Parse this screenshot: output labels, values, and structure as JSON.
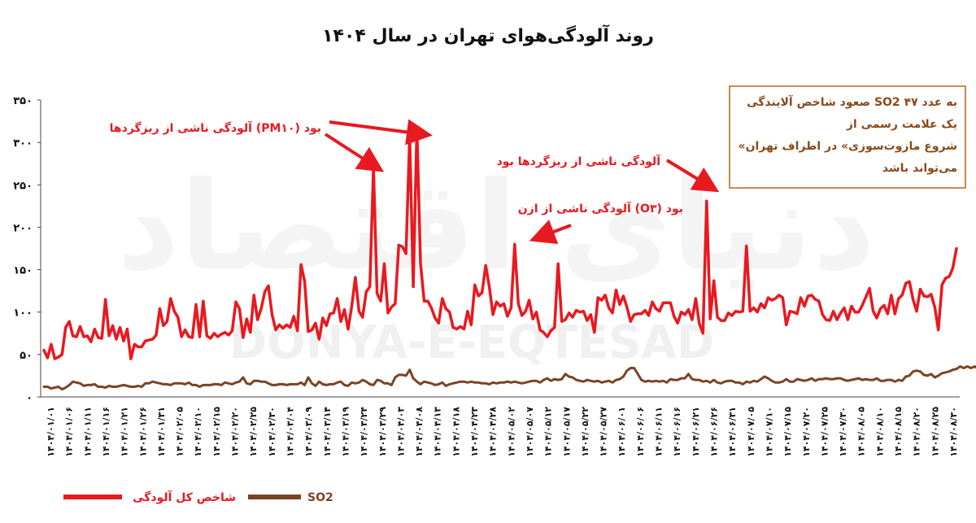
{
  "watermark": {
    "arabic": "دنیای اقتصاد",
    "latin": "DONYA-E-EQTESAD"
  },
  "colors": {
    "pollution_index": "#e8191f",
    "so2": "#7a4424",
    "note_border": "#b5651d",
    "note_text": "#8a4a1a",
    "annotation": "#e8191f"
  },
  "note": {
    "lines": [
      "صعود شاخص آلایندگی SO2 به عدد ۴۷",
      "یک علامت رسمی از",
      "«شروع مازوت‌سوزی» در اطراف تهران",
      "می‌تواند باشد"
    ]
  },
  "annotations": [
    {
      "text": "آلودگی ناشی از ریزگردها (PM۱۰) بود"
    },
    {
      "text": "آلودگی ناشی از ریزگردها بود"
    },
    {
      "text": "آلودگی ناشی از ازن (O۳) بود"
    }
  ],
  "chart_data": {
    "type": "line",
    "title": "روند آلودگی‌هوای تهران در سال ۱۴۰۴",
    "ylim": [
      0,
      350
    ],
    "yticks": [
      0,
      50,
      100,
      150,
      200,
      250,
      300,
      350
    ],
    "ytick_labels": [
      "۰",
      "۵۰",
      "۱۰۰",
      "۱۵۰",
      "۲۰۰",
      "۲۵۰",
      "۳۰۰",
      "۳۵۰"
    ],
    "xtick_labels": [
      "۱۴۰۴/۰۱/۰۱",
      "۱۴۰۴/۰۱/۰۶",
      "۱۴۰۴/۰۱/۱۱",
      "۱۴۰۴/۰۱/۱۶",
      "۱۴۰۴/۰۱/۲۱",
      "۱۴۰۴/۰۱/۲۶",
      "۱۴۰۴/۰۱/۳۱",
      "۱۴۰۴/۰۲/۰۵",
      "۱۴۰۴/۰۲/۱۰",
      "۱۴۰۴/۰۲/۱۵",
      "۱۴۰۴/۰۲/۲۰",
      "۱۴۰۴/۰۲/۲۵",
      "۱۴۰۴/۰۲/۳۰",
      "۱۴۰۴/۰۳/۰۴",
      "۱۴۰۴/۰۳/۰۹",
      "۱۴۰۴/۰۳/۱۴",
      "۱۴۰۴/۰۳/۱۹",
      "۱۴۰۴/۰۳/۲۴",
      "۱۴۰۴/۰۳/۲۹",
      "۱۴۰۴/۰۴/۰۳",
      "۱۴۰۴/۰۴/۰۸",
      "۱۴۰۴/۰۴/۱۳",
      "۱۴۰۴/۰۴/۱۸",
      "۱۴۰۴/۰۴/۲۳",
      "۱۴۰۴/۰۴/۲۸",
      "۱۴۰۴/۰۵/۰۲",
      "۱۴۰۴/۰۵/۰۷",
      "۱۴۰۴/۰۵/۱۲",
      "۱۴۰۴/۰۵/۱۷",
      "۱۴۰۴/۰۵/۲۲",
      "۱۴۰۴/۰۵/۲۷",
      "۱۴۰۴/۰۶/۰۱",
      "۱۴۰۴/۰۶/۰۶",
      "۱۴۰۴/۰۶/۱۱",
      "۱۴۰۴/۰۶/۱۶",
      "۱۴۰۴/۰۶/۲۱",
      "۱۴۰۴/۰۶/۲۶",
      "۱۴۰۴/۰۶/۳۱",
      "۱۴۰۴/۰۷/۰۵",
      "۱۴۰۴/۰۷/۱۰",
      "۱۴۰۴/۰۷/۱۵",
      "۱۴۰۴/۰۷/۲۰",
      "۱۴۰۴/۰۷/۲۵",
      "۱۴۰۴/۰۷/۳۰",
      "۱۴۰۴/۰۸/۰۵",
      "۱۴۰۴/۰۸/۱۰",
      "۱۴۰۴/۰۸/۱۵",
      "۱۴۰۴/۰۸/۲۰",
      "۱۴۰۴/۰۸/۲۵",
      "۱۴۰۴/۰۸/۳۰"
    ],
    "grid": false,
    "legend_position": "bottom",
    "series": [
      {
        "name": "شاخص کل آلودگی",
        "values": [
          55,
          46,
          62,
          45,
          47,
          50,
          82,
          89,
          72,
          71,
          83,
          71,
          72,
          65,
          80,
          70,
          69,
          115,
          72,
          84,
          68,
          82,
          66,
          80,
          45,
          62,
          59,
          59,
          66,
          67,
          68,
          73,
          104,
          84,
          89,
          116,
          101,
          94,
          71,
          79,
          71,
          70,
          109,
          71,
          113,
          72,
          69,
          75,
          71,
          74,
          76,
          73,
          78,
          112,
          104,
          70,
          92,
          76,
          120,
          91,
          104,
          124,
          131,
          97,
          79,
          85,
          81,
          85,
          82,
          95,
          78,
          156,
          136,
          77,
          79,
          87,
          68,
          93,
          84,
          98,
          99,
          116,
          89,
          103,
          80,
          107,
          141,
          101,
          94,
          124,
          130,
          271,
          122,
          113,
          157,
          99,
          106,
          110,
          179,
          177,
          169,
          308,
          130,
          318,
          158,
          113,
          113,
          105,
          93,
          87,
          116,
          104,
          100,
          82,
          80,
          83,
          80,
          101,
          85,
          132,
          119,
          123,
          155,
          130,
          97,
          112,
          107,
          110,
          95,
          105,
          180,
          110,
          96,
          101,
          114,
          92,
          100,
          79,
          76,
          71,
          78,
          82,
          157,
          89,
          91,
          99,
          94,
          102,
          100,
          101,
          90,
          97,
          76,
          117,
          114,
          120,
          105,
          99,
          126,
          109,
          119,
          106,
          89,
          97,
          98,
          98,
          102,
          96,
          112,
          104,
          101,
          111,
          111,
          111,
          95,
          87,
          100,
          97,
          103,
          91,
          116,
          86,
          75,
          231,
          92,
          137,
          94,
          90,
          90,
          99,
          96,
          101,
          100,
          101,
          178,
          101,
          105,
          100,
          110,
          105,
          117,
          114,
          116,
          120,
          117,
          85,
          101,
          100,
          98,
          117,
          107,
          119,
          120,
          115,
          113,
          97,
          91,
          90,
          101,
          91,
          99,
          105,
          91,
          107,
          100,
          100,
          108,
          118,
          128,
          101,
          93,
          104,
          108,
          98,
          120,
          98,
          116,
          120,
          134,
          136,
          115,
          101,
          127,
          119,
          118,
          121,
          106,
          79,
          132,
          140,
          142,
          152,
          175
        ],
        "color": "#e8191f"
      },
      {
        "name": "SO2",
        "values": [
          12,
          12,
          10,
          11,
          12,
          9,
          11,
          14,
          18,
          17,
          16,
          13,
          14,
          14,
          15,
          12,
          12,
          11,
          13,
          12,
          12,
          13,
          14,
          13,
          12,
          12,
          13,
          12,
          16,
          16,
          18,
          17,
          16,
          15,
          15,
          14,
          16,
          16,
          16,
          15,
          17,
          14,
          14,
          12,
          14,
          14,
          14,
          15,
          15,
          14,
          17,
          16,
          15,
          17,
          18,
          23,
          16,
          15,
          19,
          19,
          18,
          18,
          16,
          14,
          14,
          15,
          15,
          14,
          15,
          15,
          15,
          17,
          14,
          23,
          16,
          13,
          18,
          15,
          14,
          15,
          15,
          17,
          18,
          14,
          13,
          17,
          16,
          17,
          20,
          18,
          15,
          14,
          20,
          19,
          16,
          16,
          14,
          23,
          26,
          26,
          25,
          32,
          22,
          18,
          15,
          18,
          17,
          16,
          14,
          15,
          17,
          13,
          15,
          16,
          17,
          18,
          18,
          17,
          18,
          17,
          17,
          16,
          16,
          15,
          17,
          16,
          17,
          17,
          18,
          17,
          18,
          17,
          16,
          17,
          18,
          19,
          19,
          17,
          20,
          22,
          19,
          21,
          20,
          21,
          27,
          24,
          23,
          20,
          19,
          18,
          20,
          19,
          18,
          19,
          17,
          18,
          19,
          17,
          20,
          21,
          24,
          31,
          34,
          34,
          27,
          20,
          18,
          19,
          18,
          19,
          18,
          19,
          17,
          21,
          20,
          20,
          22,
          22,
          27,
          21,
          20,
          20,
          18,
          19,
          17,
          20,
          17,
          16,
          18,
          19,
          19,
          17,
          17,
          15,
          18,
          17,
          19,
          18,
          21,
          24,
          22,
          19,
          17,
          17,
          18,
          21,
          18,
          18,
          21,
          20,
          19,
          20,
          22,
          19,
          21,
          21,
          22,
          21,
          21,
          22,
          22,
          20,
          19,
          20,
          21,
          22,
          20,
          21,
          20,
          20,
          22,
          19,
          19,
          20,
          20,
          18,
          20,
          19,
          24,
          25,
          30,
          31,
          30,
          26,
          25,
          27,
          23,
          25,
          28,
          29,
          30,
          32,
          33,
          36,
          34,
          36,
          34,
          36,
          33,
          34,
          35,
          33,
          33,
          30,
          25,
          32,
          31,
          34,
          37,
          41,
          43,
          38,
          43,
          45,
          47
        ],
        "color": "#7a4424"
      }
    ]
  }
}
